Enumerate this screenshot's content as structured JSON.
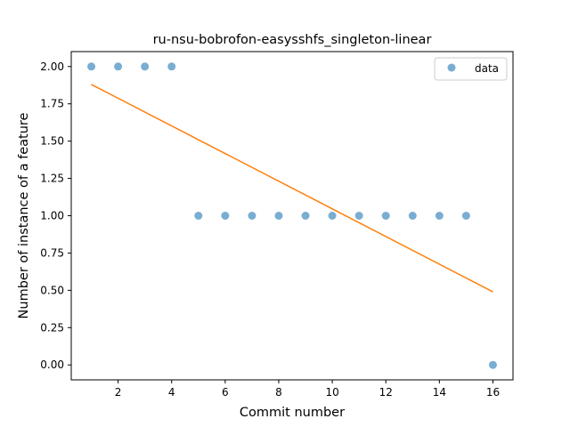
{
  "chart_data": {
    "type": "scatter",
    "title": "ru-nsu-bobrofon-easysshfs_singleton-linear",
    "xlabel": "Commit number",
    "ylabel": "Number of instance of a feature",
    "xlim": [
      0.25,
      16.75
    ],
    "ylim": [
      -0.1,
      2.1
    ],
    "x_ticks": [
      2,
      4,
      6,
      8,
      10,
      12,
      14,
      16
    ],
    "x_tick_labels": [
      "2",
      "4",
      "6",
      "8",
      "10",
      "12",
      "14",
      "16"
    ],
    "y_ticks": [
      0.0,
      0.25,
      0.5,
      0.75,
      1.0,
      1.25,
      1.5,
      1.75,
      2.0
    ],
    "y_tick_labels": [
      "0.00",
      "0.25",
      "0.50",
      "0.75",
      "1.00",
      "1.25",
      "1.50",
      "1.75",
      "2.00"
    ],
    "grid": false,
    "legend_position": "top-right",
    "series": [
      {
        "name": "data",
        "kind": "scatter",
        "color": "#1f77b4",
        "x": [
          1,
          2,
          3,
          4,
          5,
          6,
          7,
          8,
          9,
          10,
          11,
          12,
          13,
          14,
          15,
          16
        ],
        "y": [
          2,
          2,
          2,
          2,
          1,
          1,
          1,
          1,
          1,
          1,
          1,
          1,
          1,
          1,
          1,
          0
        ]
      },
      {
        "kind": "line",
        "color": "#ff7f0e",
        "x": [
          1,
          16
        ],
        "y": [
          1.88,
          0.49
        ]
      }
    ]
  }
}
